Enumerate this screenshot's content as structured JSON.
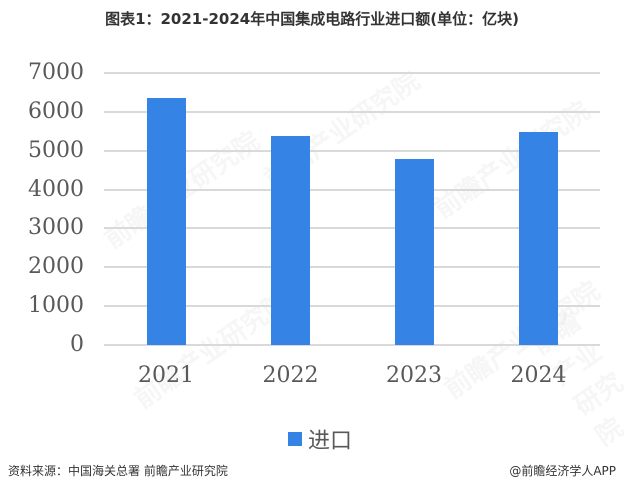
{
  "title": "图表1：2021-2024年中国集成电路行业进口额(单位：亿块)",
  "chart_data": {
    "type": "bar",
    "title": "图表1：2021-2024年中国集成电路行业进口额(单位：亿块)",
    "categories": [
      "2021",
      "2022",
      "2023",
      "2024"
    ],
    "series": [
      {
        "name": "进口",
        "values": [
          6355,
          5384,
          4782,
          5492
        ],
        "color": "#3683E6"
      }
    ],
    "xlabel": "",
    "ylabel": "",
    "ylim": [
      0,
      7000
    ],
    "yticks": [
      "0",
      "1000",
      "2000",
      "3000",
      "4000",
      "5000",
      "6000",
      "7000"
    ],
    "grid": true,
    "legend_position": "bottom"
  },
  "legend": {
    "label": "进口"
  },
  "footer": {
    "source": "资料来源：中国海关总署 前瞻产业研究院",
    "brand": "@前瞻经济学人APP"
  },
  "watermark": "前瞻产业研究院"
}
